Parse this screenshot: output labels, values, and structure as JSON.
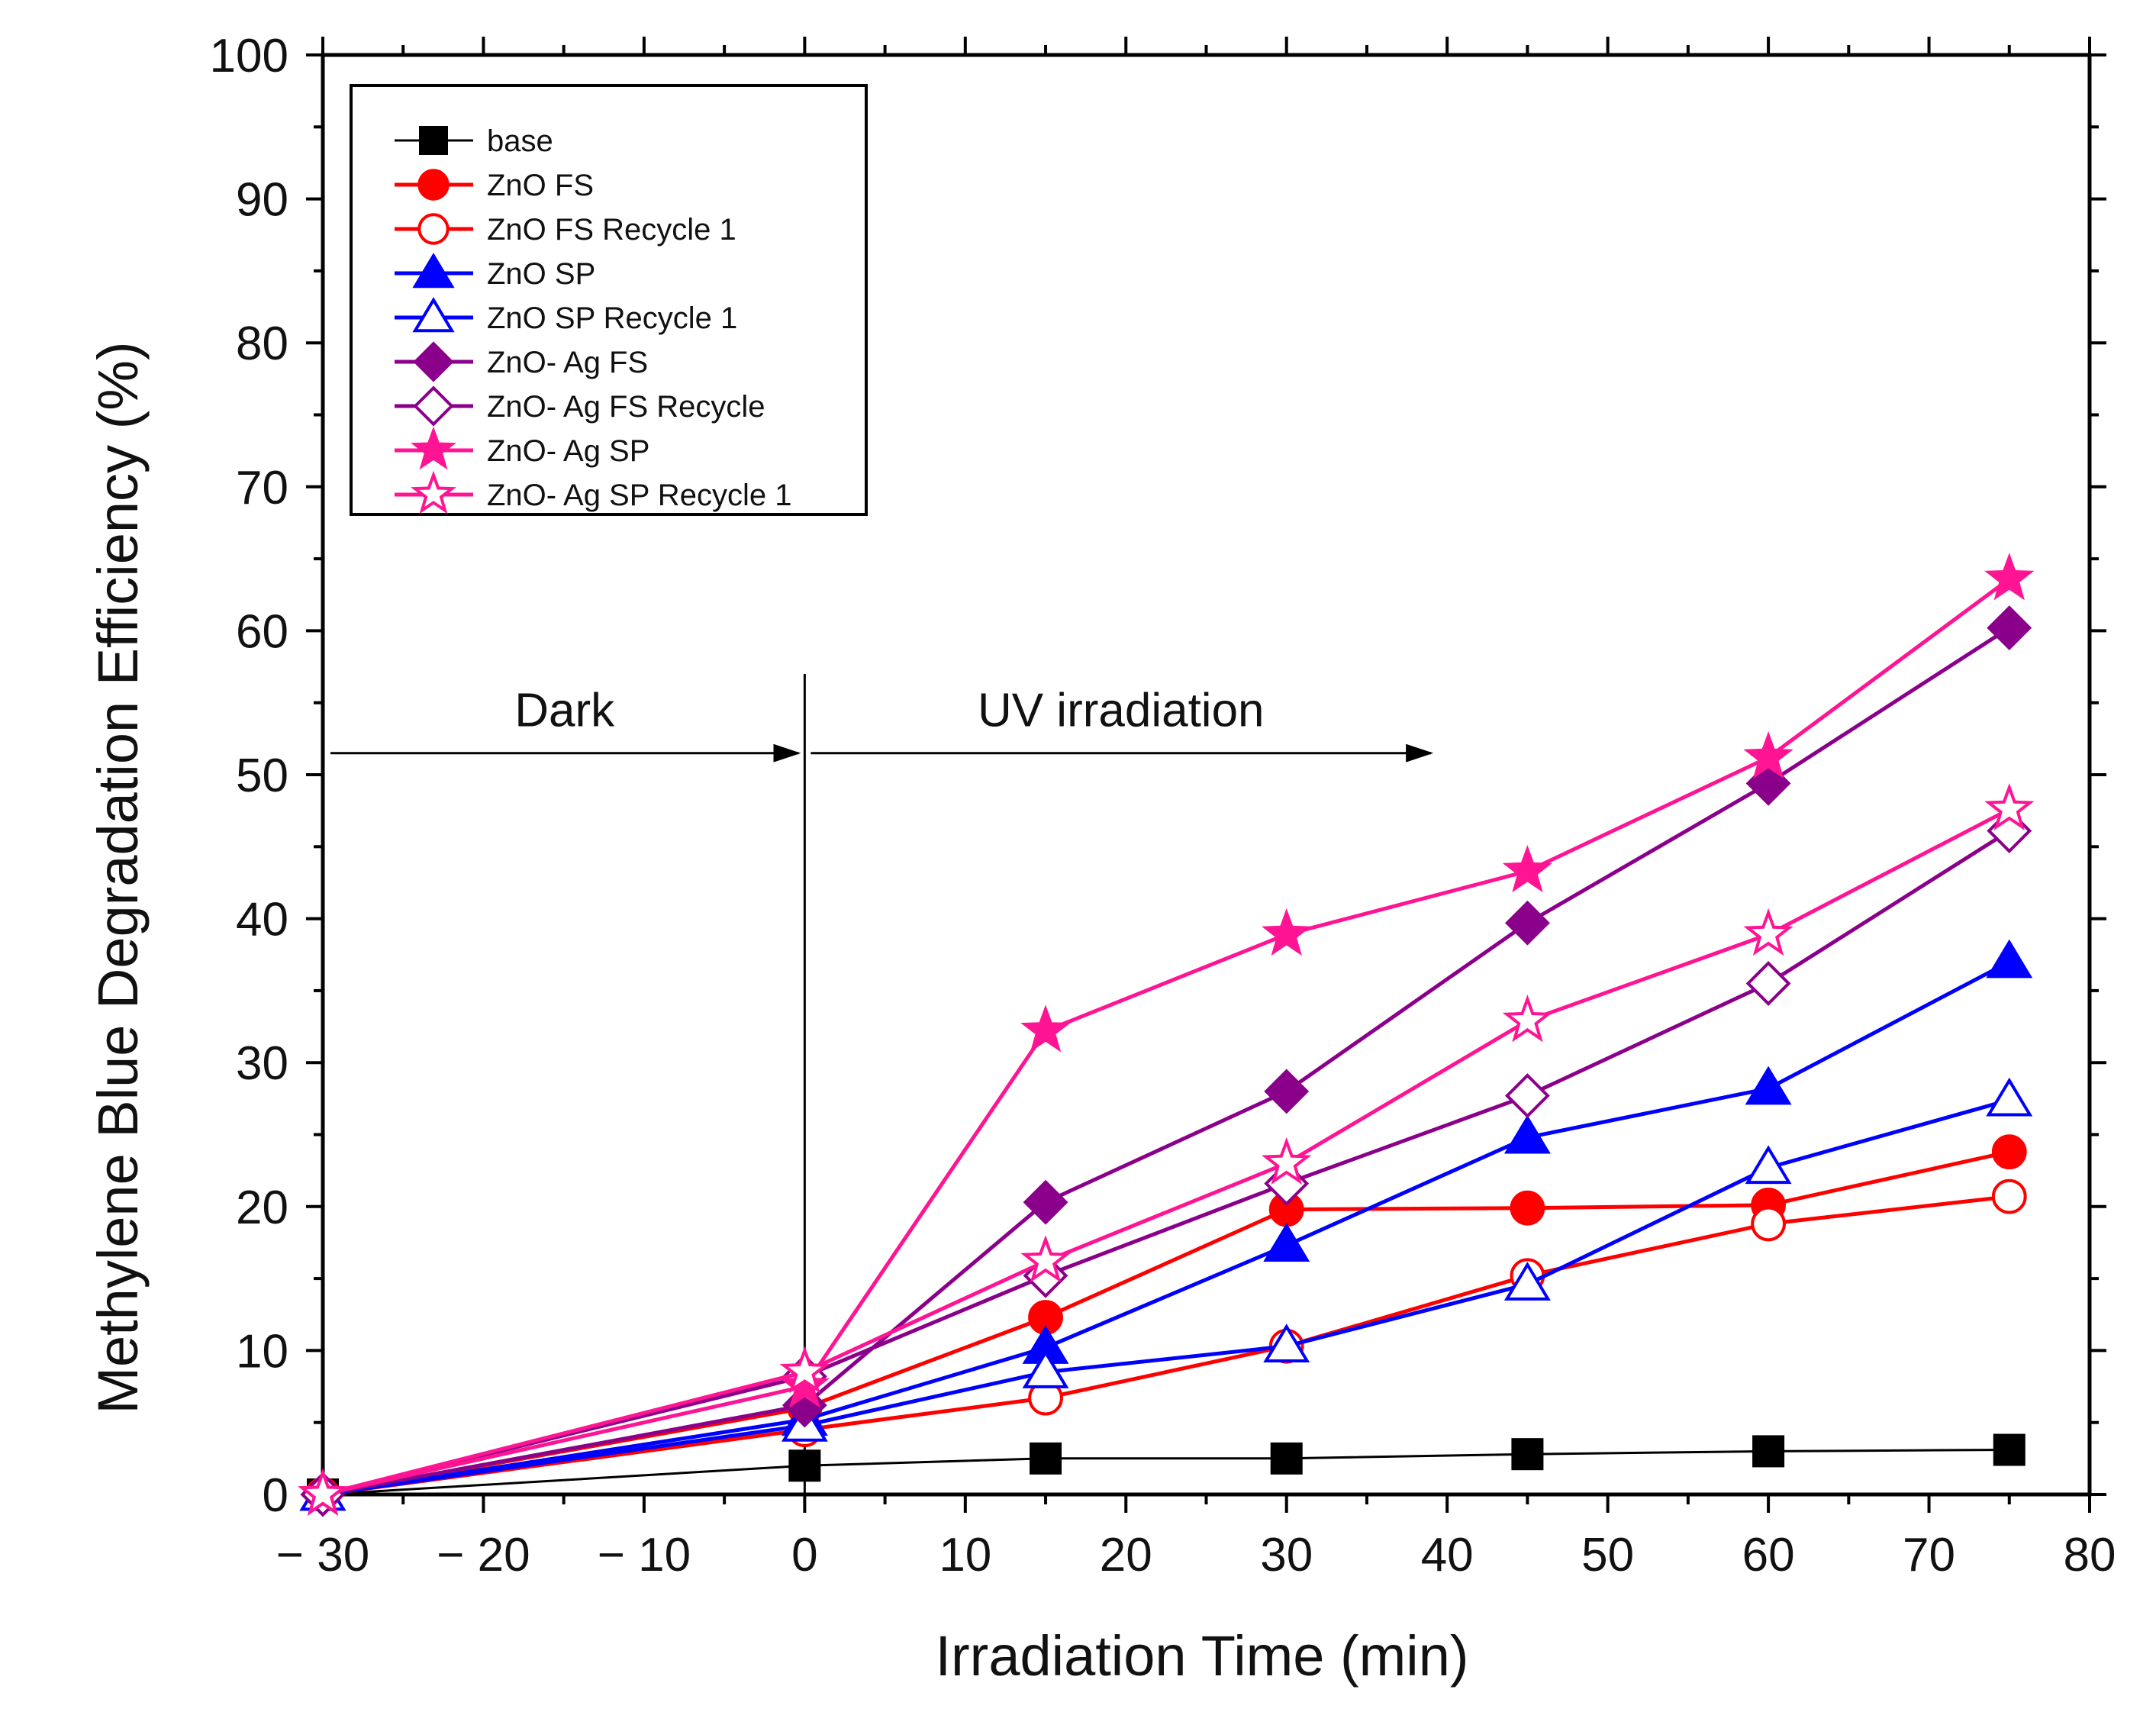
{
  "chart_data": {
    "type": "line",
    "title": "",
    "xlabel": "Irradiation Time (min)",
    "ylabel": "Methylene Blue Degradation Efficiency (%)",
    "xlim": [
      -30,
      80
    ],
    "ylim": [
      0,
      100
    ],
    "xticks": [
      -30,
      -20,
      -10,
      0,
      10,
      20,
      30,
      40,
      50,
      60,
      70,
      80
    ],
    "xtick_labels": [
      "− 30",
      "− 20",
      "− 10",
      "0",
      "10",
      "20",
      "30",
      "40",
      "50",
      "60",
      "70",
      "80"
    ],
    "yticks": [
      0,
      10,
      20,
      30,
      40,
      50,
      60,
      70,
      80,
      90,
      100
    ],
    "ytick_labels": [
      "0",
      "10",
      "20",
      "30",
      "40",
      "50",
      "60",
      "70",
      "80",
      "90",
      "100"
    ],
    "grid": false,
    "legend_position": "top-left",
    "x": [
      -30,
      0,
      15,
      30,
      45,
      60,
      75
    ],
    "series": [
      {
        "name": "base",
        "color": "#000000",
        "marker": "square",
        "filled": true,
        "values": [
          0,
          2.0,
          2.5,
          2.5,
          2.8,
          3.0,
          3.1
        ]
      },
      {
        "name": "ZnO FS",
        "color": "#ff0000",
        "marker": "circle",
        "filled": true,
        "values": [
          0,
          6.0,
          12.3,
          19.8,
          19.9,
          20.1,
          23.8
        ]
      },
      {
        "name": "ZnO FS Recycle 1",
        "color": "#ff0000",
        "marker": "circle",
        "filled": false,
        "values": [
          0,
          4.5,
          6.7,
          10.3,
          15.2,
          18.8,
          20.7
        ]
      },
      {
        "name": "ZnO SP",
        "color": "#0000ff",
        "marker": "triangle",
        "filled": true,
        "values": [
          0,
          5.2,
          10.2,
          17.3,
          24.8,
          28.2,
          37.0
        ]
      },
      {
        "name": "ZnO SP Recycle 1",
        "color": "#0000ff",
        "marker": "triangle",
        "filled": false,
        "values": [
          0,
          4.8,
          8.5,
          10.3,
          14.6,
          22.7,
          27.4
        ]
      },
      {
        "name": "ZnO- Ag FS",
        "color": "#8b008b",
        "marker": "diamond",
        "filled": true,
        "values": [
          0,
          6.2,
          20.3,
          28.0,
          39.7,
          49.4,
          60.2
        ]
      },
      {
        "name": "ZnO- Ag FS Recycle",
        "color": "#8b008b",
        "marker": "diamond",
        "filled": false,
        "values": [
          0,
          8.2,
          15.2,
          21.6,
          27.7,
          35.5,
          46.1
        ]
      },
      {
        "name": "ZnO- Ag SP",
        "color": "#ff1493",
        "marker": "star",
        "filled": true,
        "values": [
          0,
          7.5,
          32.2,
          38.9,
          43.3,
          51.2,
          63.6
        ]
      },
      {
        "name": "ZnO- Ag SP Recycle 1",
        "color": "#ff1493",
        "marker": "star",
        "filled": false,
        "values": [
          0,
          8.5,
          16.2,
          23.0,
          32.9,
          38.9,
          47.6
        ]
      }
    ],
    "annotations": [
      {
        "text": "Dark",
        "x_from": -30,
        "x_to": 0,
        "y": 51.5
      },
      {
        "text": "UV irradiation",
        "x_from": 0,
        "x_to": 39,
        "y": 51.5
      }
    ],
    "divider_x": 0,
    "divider_y_top": 57
  }
}
